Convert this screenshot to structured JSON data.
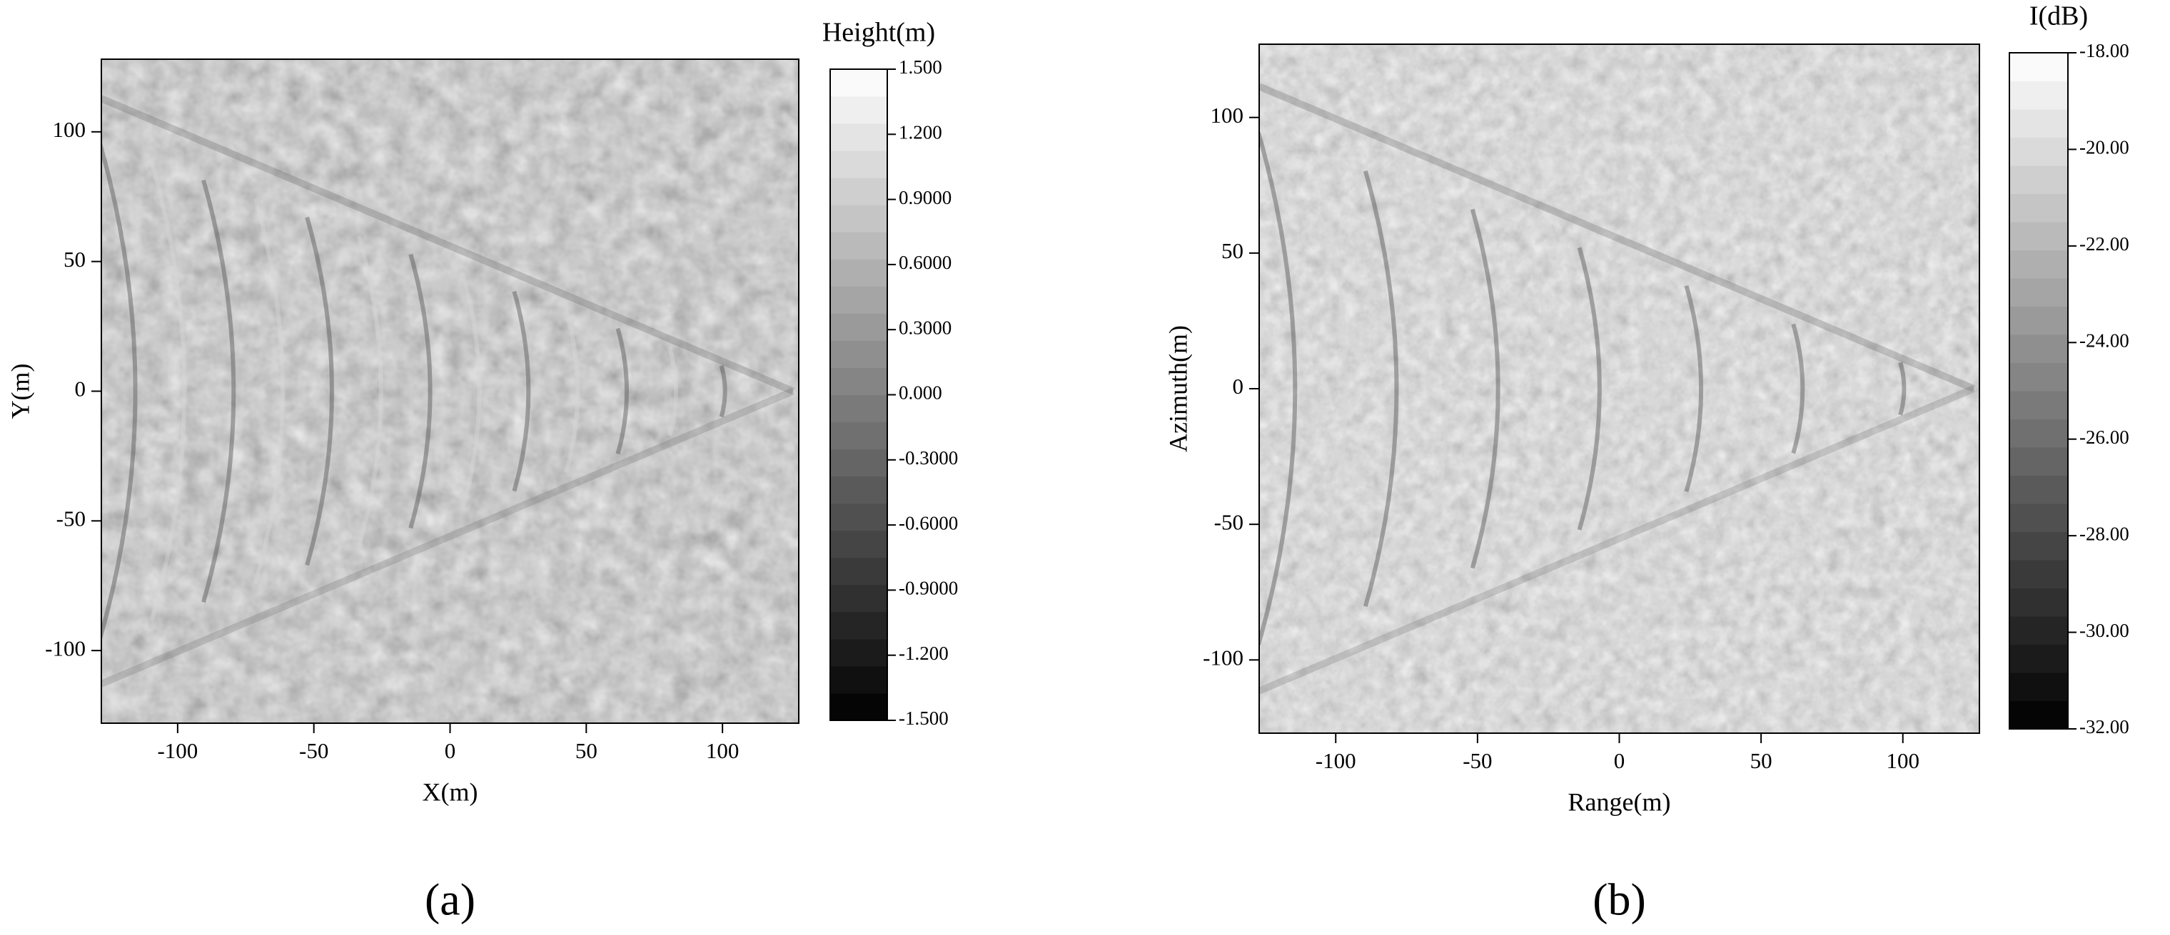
{
  "chart_data": [
    {
      "type": "heatmap",
      "panel_label": "(a)",
      "xlabel": "X(m)",
      "ylabel": "Y(m)",
      "colormap": "gray",
      "xlim": [
        -128,
        128
      ],
      "xticks": [
        -100,
        -50,
        0,
        50,
        100
      ],
      "ylim": [
        -128,
        128
      ],
      "yticks": [
        -100,
        -50,
        0,
        50,
        100
      ],
      "colorbar": {
        "label": "Height(m)",
        "lim": [
          -1.5,
          1.5
        ],
        "ticks": [
          {
            "value": 1.5,
            "label": "1.500"
          },
          {
            "value": 1.2,
            "label": "1.200"
          },
          {
            "value": 0.9,
            "label": "0.9000"
          },
          {
            "value": 0.6,
            "label": "0.6000"
          },
          {
            "value": 0.3,
            "label": "0.3000"
          },
          {
            "value": 0,
            "label": "0.000"
          },
          {
            "value": -0.3,
            "label": "-0.3000"
          },
          {
            "value": -0.6,
            "label": "-0.6000"
          },
          {
            "value": -0.9,
            "label": "-0.9000"
          },
          {
            "value": -1.2,
            "label": "-1.200"
          },
          {
            "value": -1.5,
            "label": "-1.500"
          }
        ]
      }
    },
    {
      "type": "heatmap",
      "panel_label": "(b)",
      "xlabel": "Range(m)",
      "ylabel": "Azimuth(m)",
      "colormap": "gray",
      "xlim": [
        -127,
        127
      ],
      "xticks": [
        -100,
        -50,
        0,
        50,
        100
      ],
      "ylim": [
        -127,
        127
      ],
      "yticks": [
        -100,
        -50,
        0,
        50,
        100
      ],
      "colorbar": {
        "label": "I(dB)",
        "lim": [
          -32,
          -18
        ],
        "ticks": [
          {
            "value": -18,
            "label": "-18.00"
          },
          {
            "value": -20,
            "label": "-20.00"
          },
          {
            "value": -22,
            "label": "-22.00"
          },
          {
            "value": -24,
            "label": "-24.00"
          },
          {
            "value": -26,
            "label": "-26.00"
          },
          {
            "value": -28,
            "label": "-28.00"
          },
          {
            "value": -30,
            "label": "-30.00"
          },
          {
            "value": -32,
            "label": "-32.00"
          }
        ]
      }
    }
  ]
}
